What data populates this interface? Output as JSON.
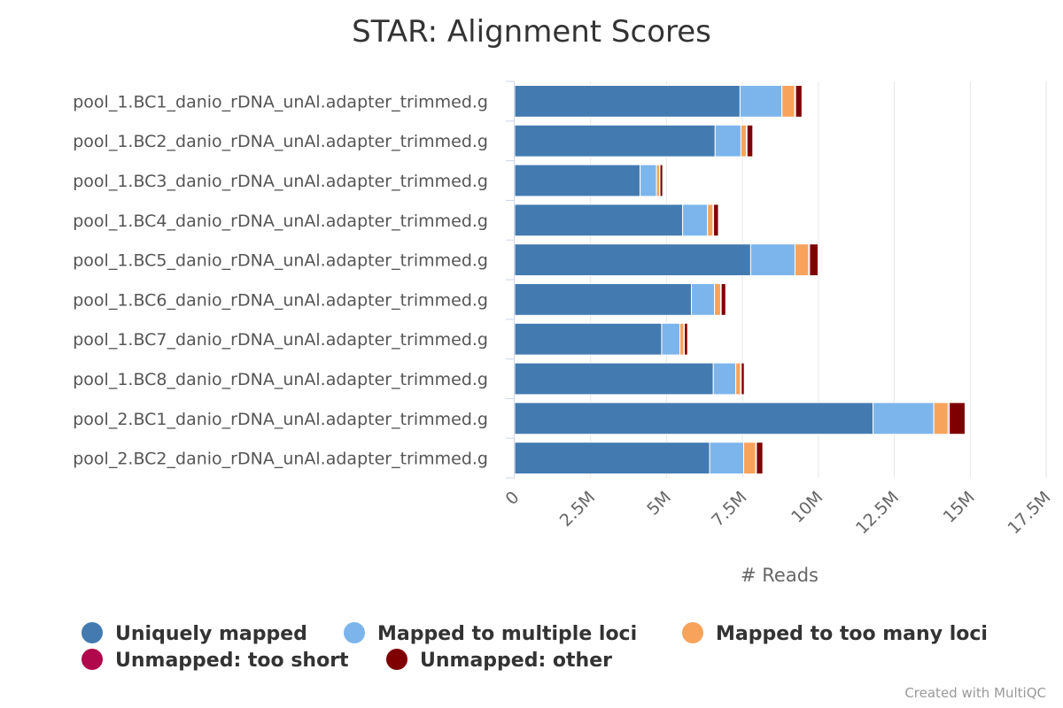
{
  "chart_data": {
    "type": "bar",
    "orientation": "horizontal",
    "stacked": true,
    "title": "STAR: Alignment Scores",
    "xlabel": "# Reads",
    "ylabel": "",
    "xlim": [
      0,
      17500000
    ],
    "x_ticks": [
      0,
      2500000,
      5000000,
      7500000,
      10000000,
      12500000,
      15000000,
      17500000
    ],
    "x_tick_labels": [
      "0",
      "2.5M",
      "5M",
      "7.5M",
      "10M",
      "12.5M",
      "15M",
      "17.5M"
    ],
    "grid": true,
    "legend_position": "bottom",
    "categories": [
      "pool_1.BC1_danio_rDNA_unAl.adapter_trimmed.g",
      "pool_1.BC2_danio_rDNA_unAl.adapter_trimmed.g",
      "pool_1.BC3_danio_rDNA_unAl.adapter_trimmed.g",
      "pool_1.BC4_danio_rDNA_unAl.adapter_trimmed.g",
      "pool_1.BC5_danio_rDNA_unAl.adapter_trimmed.g",
      "pool_1.BC6_danio_rDNA_unAl.adapter_trimmed.g",
      "pool_1.BC7_danio_rDNA_unAl.adapter_trimmed.g",
      "pool_1.BC8_danio_rDNA_unAl.adapter_trimmed.g",
      "pool_2.BC1_danio_rDNA_unAl.adapter_trimmed.g",
      "pool_2.BC2_danio_rDNA_unAl.adapter_trimmed.g"
    ],
    "series": [
      {
        "name": "Uniquely mapped",
        "color": "#437bb1",
        "values": [
          7420000,
          6600000,
          4130000,
          5530000,
          7770000,
          5820000,
          4840000,
          6540000,
          11800000,
          6420000
        ]
      },
      {
        "name": "Mapped to multiple loci",
        "color": "#7cb5ec",
        "values": [
          1380000,
          850000,
          540000,
          820000,
          1460000,
          760000,
          600000,
          740000,
          2000000,
          1120000
        ]
      },
      {
        "name": "Mapped to too many loci",
        "color": "#f7a35c",
        "values": [
          420000,
          180000,
          100000,
          180000,
          450000,
          200000,
          130000,
          160000,
          470000,
          400000
        ]
      },
      {
        "name": "Unmapped: too short",
        "color": "#b1084c",
        "values": [
          30000,
          20000,
          15000,
          20000,
          30000,
          20000,
          15000,
          20000,
          40000,
          20000
        ]
      },
      {
        "name": "Unmapped: other",
        "color": "#7f0000",
        "values": [
          210000,
          190000,
          90000,
          160000,
          280000,
          150000,
          110000,
          100000,
          520000,
          210000
        ]
      }
    ]
  },
  "credit": "Created with MultiQC"
}
